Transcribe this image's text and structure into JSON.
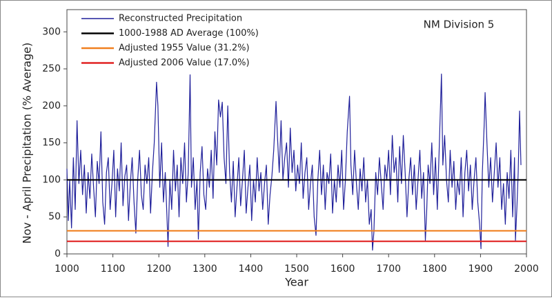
{
  "chart_data": {
    "type": "line",
    "annotation": "NM Division 5",
    "x_label": "Year",
    "y_label": "Nov - April Precipitation (% Average)",
    "xlim": [
      1000,
      2000
    ],
    "ylim": [
      0,
      330
    ],
    "xticks": [
      1000,
      1100,
      1200,
      1300,
      1400,
      1500,
      1600,
      1700,
      1800,
      1900,
      2000
    ],
    "yticks": [
      0,
      50,
      100,
      150,
      200,
      250,
      300
    ],
    "series": [
      {
        "name": "Reconstructed Precipitation",
        "color": "#1f1f9a",
        "x": [
          1000,
          1003,
          1006,
          1010,
          1014,
          1018,
          1022,
          1026,
          1030,
          1034,
          1038,
          1042,
          1046,
          1050,
          1054,
          1058,
          1062,
          1066,
          1070,
          1074,
          1078,
          1082,
          1086,
          1090,
          1094,
          1098,
          1102,
          1106,
          1110,
          1114,
          1118,
          1122,
          1126,
          1130,
          1134,
          1138,
          1142,
          1146,
          1150,
          1154,
          1158,
          1162,
          1166,
          1170,
          1174,
          1178,
          1182,
          1186,
          1190,
          1195,
          1198,
          1202,
          1206,
          1210,
          1214,
          1218,
          1220,
          1224,
          1228,
          1232,
          1236,
          1240,
          1244,
          1248,
          1252,
          1256,
          1260,
          1264,
          1268,
          1271,
          1275,
          1279,
          1283,
          1286,
          1290,
          1294,
          1298,
          1302,
          1306,
          1310,
          1314,
          1318,
          1322,
          1326,
          1330,
          1334,
          1338,
          1342,
          1346,
          1350,
          1354,
          1358,
          1362,
          1366,
          1370,
          1374,
          1378,
          1382,
          1386,
          1390,
          1394,
          1398,
          1402,
          1406,
          1410,
          1414,
          1418,
          1422,
          1426,
          1430,
          1434,
          1438,
          1442,
          1446,
          1450,
          1455,
          1458,
          1462,
          1466,
          1470,
          1474,
          1478,
          1482,
          1486,
          1490,
          1494,
          1498,
          1502,
          1506,
          1510,
          1514,
          1518,
          1522,
          1526,
          1530,
          1534,
          1538,
          1542,
          1546,
          1550,
          1554,
          1558,
          1562,
          1566,
          1570,
          1574,
          1578,
          1582,
          1586,
          1590,
          1594,
          1598,
          1602,
          1606,
          1610,
          1615,
          1618,
          1622,
          1626,
          1630,
          1634,
          1638,
          1642,
          1646,
          1650,
          1654,
          1658,
          1662,
          1665,
          1668,
          1672,
          1676,
          1680,
          1684,
          1688,
          1692,
          1696,
          1700,
          1704,
          1708,
          1712,
          1716,
          1720,
          1724,
          1728,
          1732,
          1736,
          1740,
          1744,
          1748,
          1752,
          1756,
          1760,
          1764,
          1768,
          1772,
          1776,
          1780,
          1783,
          1786,
          1790,
          1794,
          1798,
          1802,
          1806,
          1810,
          1815,
          1818,
          1822,
          1826,
          1830,
          1834,
          1838,
          1842,
          1846,
          1850,
          1854,
          1858,
          1862,
          1866,
          1870,
          1874,
          1878,
          1882,
          1886,
          1890,
          1894,
          1898,
          1901,
          1904,
          1908,
          1910,
          1914,
          1918,
          1922,
          1926,
          1930,
          1934,
          1938,
          1942,
          1946,
          1950,
          1954,
          1958,
          1962,
          1966,
          1970,
          1974,
          1976,
          1979,
          1982,
          1985,
          1988
        ],
        "values": [
          115,
          45,
          100,
          35,
          130,
          60,
          180,
          95,
          140,
          80,
          120,
          55,
          110,
          75,
          135,
          90,
          50,
          125,
          95,
          165,
          70,
          40,
          110,
          130,
          60,
          95,
          140,
          50,
          115,
          85,
          150,
          65,
          105,
          120,
          45,
          95,
          130,
          70,
          28,
          100,
          140,
          80,
          60,
          120,
          95,
          130,
          55,
          110,
          150,
          232,
          200,
          90,
          150,
          70,
          110,
          45,
          10,
          100,
          60,
          140,
          85,
          120,
          50,
          130,
          95,
          150,
          70,
          110,
          242,
          90,
          130,
          60,
          100,
          20,
          110,
          145,
          80,
          60,
          115,
          90,
          140,
          75,
          165,
          120,
          208,
          185,
          205,
          130,
          95,
          200,
          110,
          70,
          125,
          50,
          90,
          130,
          65,
          100,
          140,
          55,
          90,
          120,
          45,
          100,
          70,
          130,
          85,
          110,
          60,
          95,
          120,
          40,
          80,
          105,
          140,
          206,
          160,
          110,
          180,
          100,
          130,
          150,
          90,
          170,
          110,
          140,
          85,
          120,
          95,
          150,
          75,
          110,
          130,
          60,
          95,
          120,
          50,
          25,
          100,
          140,
          80,
          120,
          60,
          110,
          95,
          135,
          55,
          100,
          70,
          120,
          90,
          140,
          60,
          100,
          165,
          213,
          120,
          80,
          140,
          95,
          60,
          115,
          85,
          130,
          70,
          100,
          40,
          60,
          5,
          30,
          110,
          80,
          130,
          95,
          60,
          120,
          100,
          140,
          80,
          160,
          110,
          130,
          70,
          145,
          95,
          160,
          110,
          50,
          100,
          130,
          80,
          120,
          60,
          100,
          140,
          75,
          110,
          18,
          60,
          120,
          95,
          150,
          80,
          130,
          60,
          140,
          243,
          120,
          160,
          100,
          70,
          140,
          90,
          125,
          60,
          100,
          80,
          130,
          50,
          110,
          140,
          85,
          120,
          60,
          100,
          130,
          70,
          40,
          7,
          110,
          175,
          218,
          150,
          90,
          130,
          70,
          110,
          150,
          90,
          130,
          60,
          95,
          40,
          110,
          75,
          140,
          50,
          130,
          18,
          60,
          110,
          193,
          120
        ]
      }
    ],
    "reference_lines": [
      {
        "name": "1000-1988 AD Average (100%)",
        "color": "#000000",
        "value": 100
      },
      {
        "name": "Adjusted 1955 Value  (31.2%)",
        "color": "#f07f1e",
        "value": 31.2
      },
      {
        "name": "Adjusted 2006 Value  (17.0%)",
        "color": "#e02020",
        "value": 17.0
      }
    ]
  }
}
